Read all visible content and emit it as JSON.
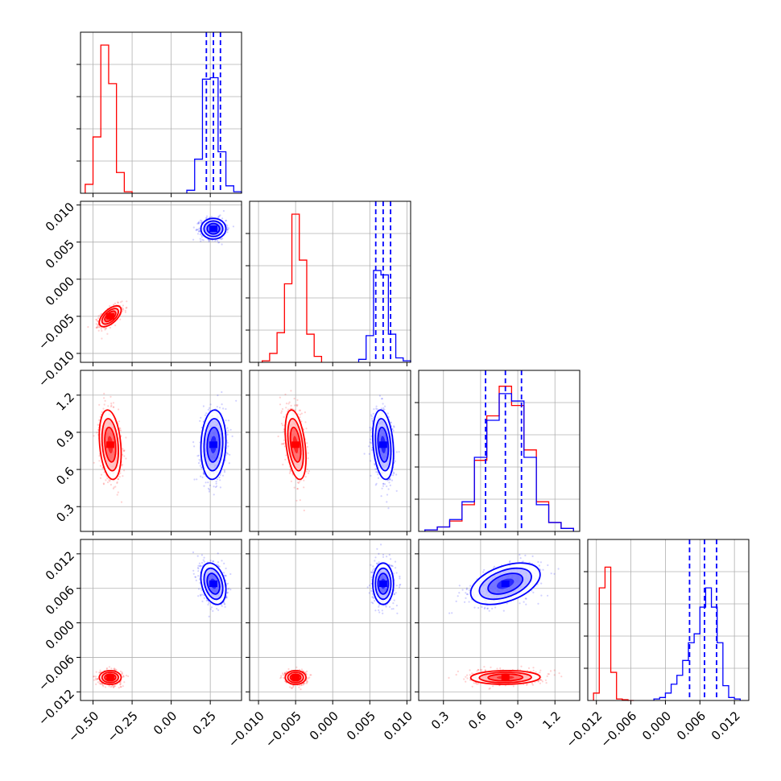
{
  "chart_data": {
    "type": "corner",
    "parameters": 4,
    "grid": true,
    "colors": {
      "red_series": "#ff0000",
      "blue_series": "#0000ff"
    },
    "axes": [
      {
        "range": [
          -0.58,
          0.45
        ],
        "ticks": [
          -0.5,
          -0.25,
          0.0,
          0.25
        ],
        "tick_labels": [
          "−0.50",
          "−0.25",
          "0.00",
          "0.25"
        ]
      },
      {
        "range": [
          -0.0112,
          0.0105
        ],
        "ticks": [
          -0.01,
          -0.005,
          0.0,
          0.005,
          0.01
        ],
        "tick_labels": [
          "−0.010",
          "−0.005",
          "0.000",
          "0.005",
          "0.010"
        ]
      },
      {
        "range": [
          0.1,
          1.4
        ],
        "ticks": [
          0.3,
          0.6,
          0.9,
          1.2
        ],
        "tick_labels": [
          "0.3",
          "0.6",
          "0.9",
          "1.2"
        ]
      },
      {
        "range": [
          -0.0135,
          0.0145
        ],
        "ticks": [
          -0.012,
          -0.006,
          0.0,
          0.006,
          0.012
        ],
        "tick_labels": [
          "−0.012",
          "−0.006",
          "0.000",
          "0.006",
          "0.012"
        ]
      }
    ],
    "series": [
      {
        "color": "red",
        "means": [
          -0.39,
          -0.005,
          0.8,
          -0.0095
        ],
        "sds": [
          0.035,
          0.0007,
          0.14,
          0.0006
        ],
        "hists": [
          {
            "edges": [
              -0.55,
              -0.5,
              -0.45,
              -0.4,
              -0.35,
              -0.3,
              -0.25
            ],
            "values": [
              0.06,
              0.38,
              1.0,
              0.74,
              0.14,
              0.01
            ]
          },
          {
            "edges": [
              -0.0095,
              -0.0085,
              -0.0075,
              -0.0065,
              -0.0055,
              -0.0045,
              -0.0035,
              -0.0025,
              -0.0015
            ],
            "values": [
              0.01,
              0.06,
              0.2,
              0.53,
              1.0,
              0.69,
              0.19,
              0.04
            ]
          },
          {
            "edges": [
              0.15,
              0.25,
              0.35,
              0.45,
              0.55,
              0.65,
              0.75,
              0.85,
              0.95,
              1.05,
              1.15,
              1.25,
              1.35
            ],
            "values": [
              0.01,
              0.03,
              0.07,
              0.18,
              0.48,
              0.78,
              0.98,
              0.85,
              0.55,
              0.2,
              0.06,
              0.02
            ]
          },
          {
            "edges": [
              -0.0125,
              -0.0115,
              -0.0105,
              -0.0095,
              -0.0085,
              -0.0075,
              -0.0065,
              -0.0055
            ],
            "values": [
              0.05,
              0.76,
              0.9,
              0.19,
              0.01,
              0.005,
              0.0
            ]
          }
        ],
        "quantiles": null
      },
      {
        "color": "blue",
        "means": [
          0.27,
          0.0068,
          0.8,
          0.0068
        ],
        "sds": [
          0.04,
          0.0007,
          0.14,
          0.0018
        ],
        "hists": [
          {
            "edges": [
              0.1,
              0.15,
              0.2,
              0.25,
              0.3,
              0.35,
              0.4,
              0.45
            ],
            "values": [
              0.02,
              0.23,
              0.77,
              0.78,
              0.28,
              0.05,
              0.01
            ]
          },
          {
            "edges": [
              0.0035,
              0.0045,
              0.0055,
              0.0065,
              0.0075,
              0.0085,
              0.0095,
              0.0105
            ],
            "values": [
              0.02,
              0.18,
              0.62,
              0.59,
              0.19,
              0.03,
              0.01
            ]
          },
          {
            "edges": [
              0.15,
              0.25,
              0.35,
              0.45,
              0.55,
              0.65,
              0.75,
              0.85,
              0.95,
              1.05,
              1.15,
              1.25,
              1.35
            ],
            "values": [
              0.01,
              0.03,
              0.08,
              0.2,
              0.5,
              0.75,
              0.93,
              0.88,
              0.5,
              0.18,
              0.06,
              0.02
            ]
          },
          {
            "edges": [
              -0.002,
              -0.001,
              0.0,
              0.001,
              0.002,
              0.003,
              0.004,
              0.005,
              0.006,
              0.007,
              0.008,
              0.009,
              0.01,
              0.011,
              0.012,
              0.013
            ],
            "values": [
              0.01,
              0.02,
              0.05,
              0.11,
              0.17,
              0.27,
              0.39,
              0.45,
              0.63,
              0.76,
              0.63,
              0.39,
              0.1,
              0.02,
              0.01
            ]
          }
        ],
        "quantiles": [
          [
            0.225,
            0.27,
            0.315
          ],
          [
            0.0058,
            0.0068,
            0.0078
          ],
          [
            0.64,
            0.8,
            0.93
          ],
          [
            0.0042,
            0.0068,
            0.0089
          ]
        ]
      }
    ]
  }
}
